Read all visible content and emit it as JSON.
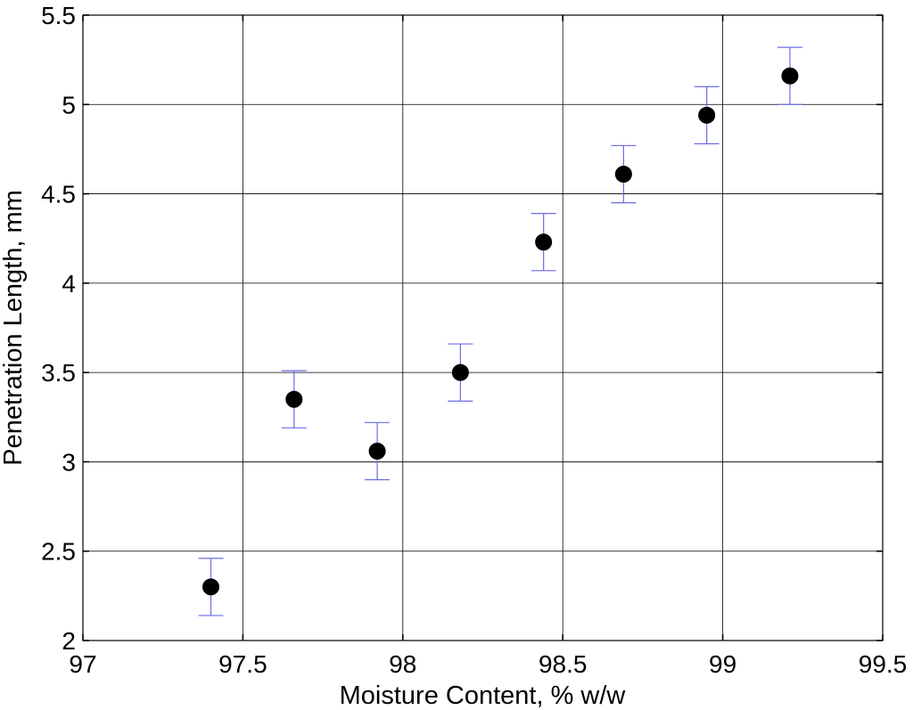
{
  "chart_data": {
    "type": "scatter",
    "title": "",
    "xlabel": "Moisture Content, % w/w",
    "ylabel": "Penetration Length, mm",
    "xlim": [
      97,
      99.5
    ],
    "ylim": [
      2,
      5.5
    ],
    "x_ticks": [
      "97",
      "97.5",
      "98",
      "98.5",
      "99",
      "99.5"
    ],
    "y_ticks": [
      "2",
      "2.5",
      "3",
      "3.5",
      "4",
      "4.5",
      "5",
      "5.5"
    ],
    "grid": true,
    "error_bars": true,
    "series": [
      {
        "x": [
          97.4,
          97.66,
          97.92,
          98.18,
          98.44,
          98.69,
          98.95,
          99.21
        ],
        "y": [
          2.3,
          3.35,
          3.06,
          3.5,
          4.23,
          4.61,
          4.94,
          5.16
        ],
        "yerr": [
          0.16,
          0.16,
          0.16,
          0.16,
          0.16,
          0.16,
          0.16,
          0.16
        ]
      }
    ],
    "colors": {
      "marker": "#000000",
      "error_bar": "#6b6be8",
      "grid": "#000000"
    }
  }
}
